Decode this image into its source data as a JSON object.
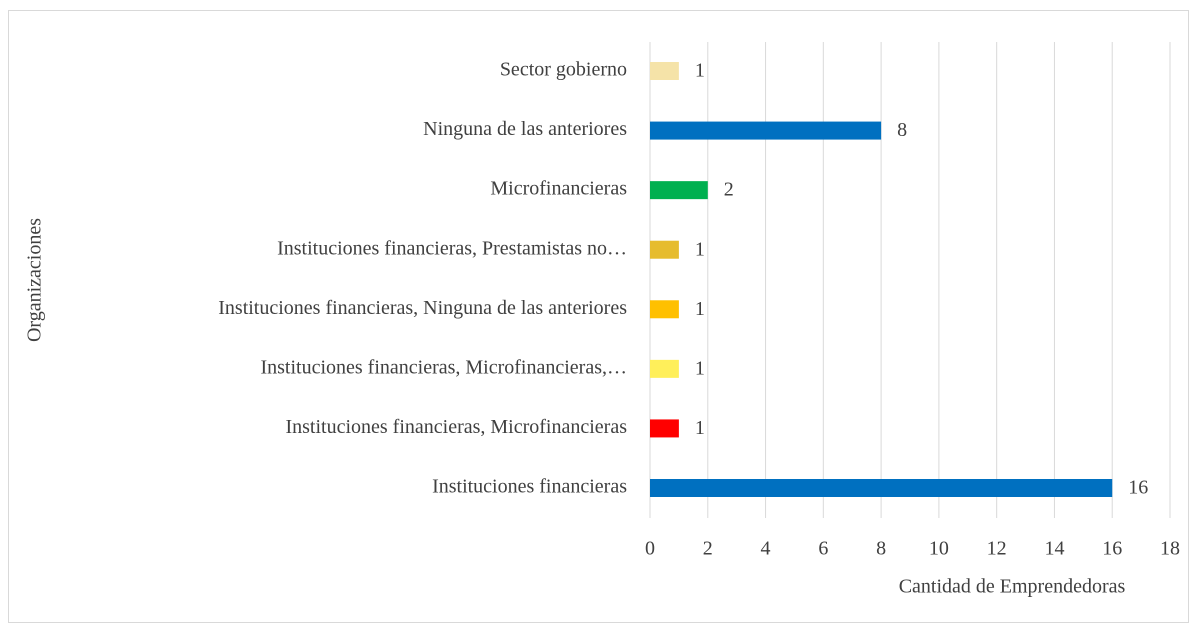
{
  "chart_data": {
    "type": "bar",
    "orientation": "horizontal",
    "categories": [
      "Sector gobierno",
      "Ninguna de las anteriores",
      "Microfinancieras",
      "Instituciones financieras, Prestamistas no…",
      "Instituciones financieras, Ninguna de las anteriores",
      "Instituciones financieras, Microfinancieras,…",
      "Instituciones financieras, Microfinancieras",
      "Instituciones financieras"
    ],
    "values": [
      1,
      8,
      2,
      1,
      1,
      1,
      1,
      16
    ],
    "colors": [
      "#f5e3a8",
      "#0070c0",
      "#00b050",
      "#e6bc2e",
      "#ffc000",
      "#ffef5a",
      "#ff0000",
      "#0070c0"
    ],
    "xlabel": "Cantidad de Emprendedoras",
    "ylabel": "Organizaciones",
    "xlim": [
      0,
      18
    ],
    "xticks": [
      0,
      2,
      4,
      6,
      8,
      10,
      12,
      14,
      16,
      18
    ],
    "grid": true
  }
}
